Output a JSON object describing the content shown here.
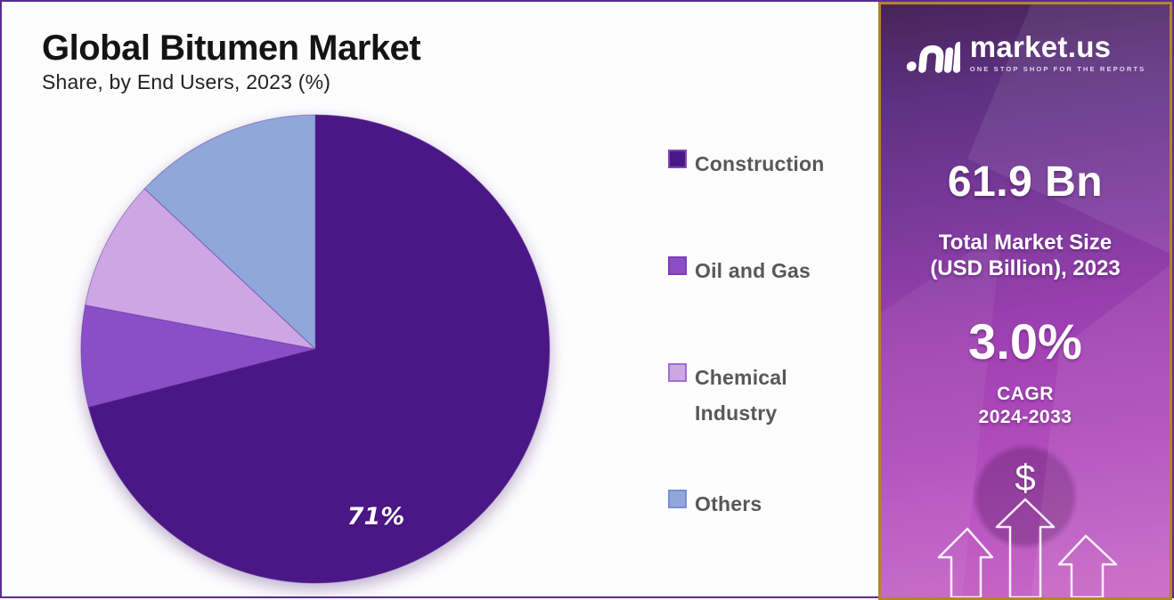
{
  "header": {
    "title": "Global Bitumen Market",
    "subtitle": "Share, by End Users, 2023 (%)"
  },
  "chart_data": {
    "type": "pie",
    "title": "Global Bitumen Market",
    "subtitle": "Share, by End Users, 2023 (%)",
    "categories": [
      "Construction",
      "Oil and Gas",
      "Chemical Industry",
      "Others"
    ],
    "values": [
      71,
      7,
      9,
      13
    ],
    "unit": "%",
    "colors": [
      "#4b1786",
      "#8a4fc8",
      "#cda6e6",
      "#8fa7db"
    ],
    "swatch_borders": [
      "#7b4ab5",
      "#7a3db8",
      "#9d6fd0",
      "#7a8fd0"
    ],
    "start_angle_deg": 0,
    "direction": "clockwise",
    "legend_position": "right",
    "visible_data_labels": [
      {
        "slice": "Construction",
        "text": "71%"
      }
    ]
  },
  "sidebar": {
    "brand": {
      "name": "market.us",
      "tagline": "ONE STOP SHOP FOR THE REPORTS"
    },
    "market_size": {
      "value": "61.9 Bn",
      "label_line1": "Total Market Size",
      "label_line2": "(USD Billion), 2023"
    },
    "cagr": {
      "value": "3.0%",
      "label": "CAGR",
      "period": "2024-2033"
    },
    "dollar_symbol": "$",
    "colors": {
      "border_gold": "#b5832e",
      "gradient_top": "#472459",
      "gradient_bottom": "#ca67c6"
    }
  },
  "canvas": {
    "frame_color": "#5b2c8f",
    "background": "#fdfdfe"
  }
}
